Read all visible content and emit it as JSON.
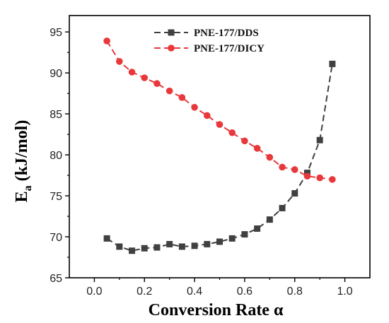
{
  "chart_data": {
    "type": "line",
    "xlabel": "Conversion Rate α",
    "ylabel_main": "E",
    "ylabel_sub": "a",
    "ylabel_rest": " (kJ/mol)",
    "xlim": [
      -0.1,
      1.1
    ],
    "ylim": [
      65,
      97
    ],
    "xticks": [
      0.0,
      0.2,
      0.4,
      0.6,
      0.8,
      1.0
    ],
    "xtick_labels": [
      "0.0",
      "0.2",
      "0.4",
      "0.6",
      "0.8",
      "1.0"
    ],
    "yticks": [
      65,
      70,
      75,
      80,
      85,
      90,
      95
    ],
    "ytick_labels": [
      "65",
      "70",
      "75",
      "80",
      "85",
      "90",
      "95"
    ],
    "grid": false,
    "legend_position": "top-center",
    "x": [
      0.05,
      0.1,
      0.15,
      0.2,
      0.25,
      0.3,
      0.35,
      0.4,
      0.45,
      0.5,
      0.55,
      0.6,
      0.65,
      0.7,
      0.75,
      0.8,
      0.85,
      0.9,
      0.95
    ],
    "series": [
      {
        "name": "PNE-177/DDS",
        "color": "#404040",
        "marker": "square",
        "values": [
          69.8,
          68.8,
          68.3,
          68.6,
          68.7,
          69.1,
          68.8,
          68.9,
          69.1,
          69.4,
          69.8,
          70.3,
          71.0,
          72.1,
          73.5,
          75.3,
          77.8,
          81.8,
          91.1
        ]
      },
      {
        "name": "PNE-177/DICY",
        "color": "#e8383b",
        "marker": "circle",
        "values": [
          93.9,
          91.4,
          90.1,
          89.4,
          88.7,
          87.8,
          87.0,
          85.8,
          84.8,
          83.7,
          82.7,
          81.7,
          80.8,
          79.7,
          78.5,
          78.2,
          77.4,
          77.2,
          77.0
        ]
      }
    ]
  }
}
